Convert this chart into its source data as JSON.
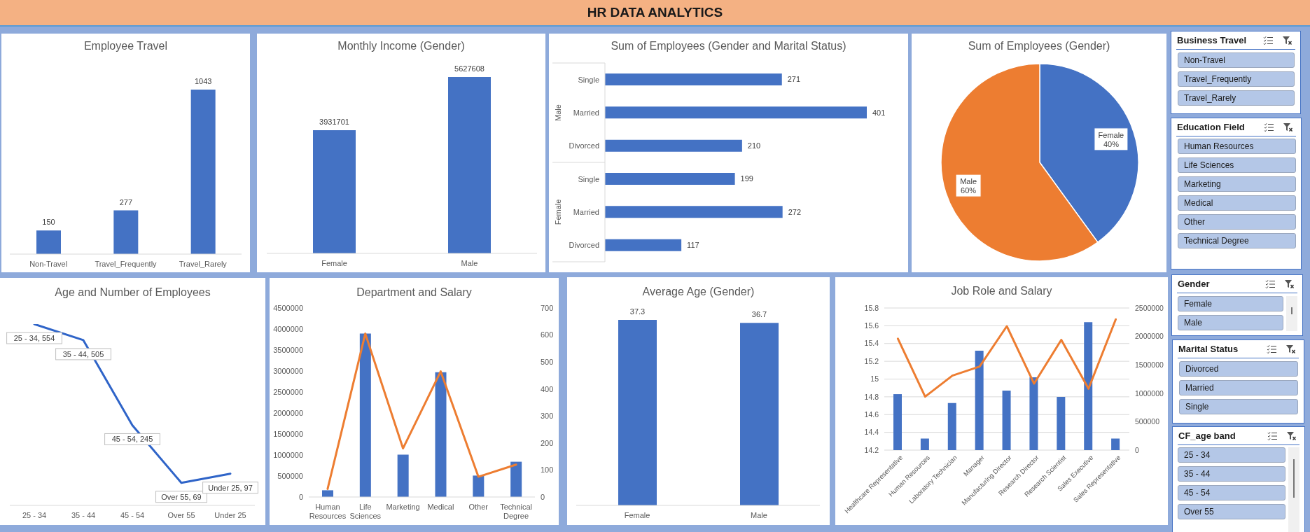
{
  "chart_data": [
    {
      "type": "other",
      "title": "HR DATA ANALYTICS"
    },
    {
      "type": "bar",
      "title": "Employee Travel",
      "categories": [
        "Non-Travel",
        "Travel_Frequently",
        "Travel_Rarely"
      ],
      "values": [
        150,
        277,
        1043
      ],
      "color": "#4472c4",
      "data_labels": true
    },
    {
      "type": "bar",
      "title": "Monthly Income (Gender)",
      "categories": [
        "Female",
        "Male"
      ],
      "values": [
        3931701,
        5627608
      ],
      "color": "#4472c4",
      "data_labels": true
    },
    {
      "type": "bar",
      "title": "Sum of Employees (Gender and Marital Status)",
      "orientation": "horizontal",
      "categories": [
        "Single",
        "Married",
        "Divorced",
        "Single",
        "Married",
        "Divorced"
      ],
      "values": [
        271,
        401,
        210,
        199,
        272,
        117
      ],
      "color": "#4472c4",
      "data_labels": true,
      "annotations": [
        "Male",
        "Female"
      ]
    },
    {
      "type": "pie",
      "title": "Sum of Employees (Gender)",
      "categories": [
        "Female",
        "Male"
      ],
      "values": [
        40,
        60
      ],
      "colors": [
        "#4472c4",
        "#ed7d31"
      ],
      "value_labels": [
        "40%",
        "60%"
      ]
    },
    {
      "type": "line",
      "title": "Age and Number of Employees",
      "categories": [
        "25 - 34",
        "35 - 44",
        "45 - 54",
        "Over 55",
        "Under 25"
      ],
      "values": [
        554,
        505,
        245,
        69,
        97
      ],
      "color": "#2f64c8",
      "value_labels": [
        "25 - 34, 554",
        "35 - 44, 505",
        "45 - 54, 245",
        "Over 55, 69",
        "Under 25, 97"
      ]
    },
    {
      "type": "bar",
      "title": "Department and Salary",
      "categories": [
        "Human Resources",
        "Life Sciences",
        "Marketing",
        "Medical",
        "Other",
        "Technical Degree"
      ],
      "series": [
        {
          "type": "bar",
          "color": "#4472c4",
          "values": [
            160000,
            3890000,
            1010000,
            2970000,
            510000,
            840000
          ]
        },
        {
          "type": "line",
          "axis": "y2",
          "color": "#ed7d31",
          "values": [
            30,
            605,
            180,
            465,
            75,
            120
          ]
        }
      ],
      "ylim": [
        0,
        4500000
      ],
      "yticks": [
        0,
        500000,
        1000000,
        1500000,
        2000000,
        2500000,
        3000000,
        3500000,
        4000000,
        4500000
      ],
      "y2lim": [
        0,
        700
      ],
      "y2ticks": [
        0,
        100,
        200,
        300,
        400,
        500,
        600,
        700
      ]
    },
    {
      "type": "bar",
      "title": "Average Age (Gender)",
      "categories": [
        "Female",
        "Male"
      ],
      "values": [
        37.3,
        36.7
      ],
      "color": "#4472c4",
      "data_labels": true
    },
    {
      "type": "bar",
      "title": "Job Role and Salary",
      "categories": [
        "Healthcare Representative",
        "Human Resources",
        "Laboratory Technician",
        "Manager",
        "Manufacturing Director",
        "Research Director",
        "Research Scientist",
        "Sales Executive",
        "Sales Representative"
      ],
      "series": [
        {
          "type": "bar",
          "color": "#4472c4",
          "values": [
            14.83,
            14.33,
            14.73,
            15.32,
            14.87,
            15.02,
            14.8,
            15.64,
            14.33
          ]
        },
        {
          "type": "line",
          "axis": "y2",
          "color": "#ed7d31",
          "values": [
            1960000,
            940000,
            1310000,
            1470000,
            2180000,
            1170000,
            1940000,
            1080000,
            2300000
          ]
        }
      ],
      "ylim": [
        14.2,
        15.8
      ],
      "yticks": [
        14.2,
        14.4,
        14.6,
        14.8,
        15,
        15.2,
        15.4,
        15.6,
        15.8
      ],
      "y2lim": [
        0,
        2500000
      ],
      "y2ticks": [
        0,
        500000,
        1000000,
        1500000,
        2000000,
        2500000
      ],
      "grid": "y"
    },
    {
      "type": "other",
      "title": "Business Travel",
      "annotations": [
        "Non-Travel",
        "Travel_Frequently",
        "Travel_Rarely"
      ]
    },
    {
      "type": "other",
      "title": "Education Field",
      "annotations": [
        "Human Resources",
        "Life Sciences",
        "Marketing",
        "Medical",
        "Other",
        "Technical Degree"
      ]
    },
    {
      "type": "other",
      "title": "Gender",
      "annotations": [
        "Female",
        "Male"
      ]
    },
    {
      "type": "other",
      "title": "Marital Status",
      "annotations": [
        "Divorced",
        "Married",
        "Single"
      ]
    },
    {
      "type": "other",
      "title": "CF_age band",
      "annotations": [
        "25 - 34",
        "35 - 44",
        "45 - 54",
        "Over 55"
      ]
    }
  ]
}
